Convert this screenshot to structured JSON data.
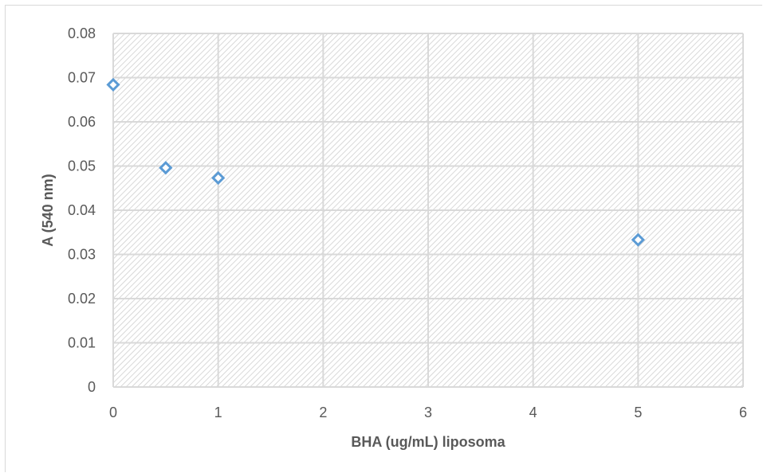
{
  "chart_data": {
    "type": "scatter",
    "title": "",
    "xlabel": "BHA (ug/mL) liposoma",
    "ylabel": "A (540 nm)",
    "xlim": [
      0,
      6
    ],
    "ylim": [
      0,
      0.08
    ],
    "x_ticks": [
      "0",
      "1",
      "2",
      "3",
      "4",
      "5",
      "6"
    ],
    "y_ticks": [
      "0",
      "0.01",
      "0.02",
      "0.03",
      "0.04",
      "0.05",
      "0.06",
      "0.07",
      "0.08"
    ],
    "grid": true,
    "plot_area_fill": "diagonal-hatch",
    "marker": "diamond-open",
    "series": [
      {
        "x": [
          0,
          0.5,
          1,
          5
        ],
        "y": [
          0.0684,
          0.0496,
          0.0473,
          0.0333
        ],
        "color": "#5b9bd5"
      }
    ]
  }
}
